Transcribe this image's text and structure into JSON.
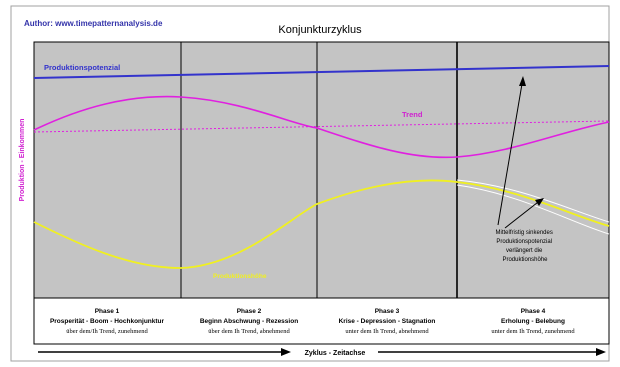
{
  "author": "Author: www.timepatternanalysis.de",
  "title": "Konjunkturzyklus",
  "y_label": "Produktion - Einkommen",
  "x_label": "Zyklus - Zeitachse",
  "curve_labels": {
    "potential": "Produktionspotenzial",
    "trend": "Trend",
    "production": "Produktionshöhe"
  },
  "annotation": [
    "Mittelfristig sinkendes",
    "Produktionspotenzial",
    "verlängert die",
    "Produktionshöhe"
  ],
  "phases": [
    {
      "name": "Phase 1",
      "title": "Prosperität - Boom - Hochkonjunktur",
      "desc": "über dem/Ih Trend, zunehmend"
    },
    {
      "name": "Phase 2",
      "title": "Beginn Abschwung - Rezession",
      "desc": "über dem Ih Trend, abnehmend"
    },
    {
      "name": "Phase 3",
      "title": "Krise - Depression - Stagnation",
      "desc": "unter dem Ih Trend, abnehmend"
    },
    {
      "name": "Phase 4",
      "title": "Erholung - Belebung",
      "desc": "unter dem Ih Trend, zunehmend"
    }
  ],
  "colors": {
    "panel": "#c4c4c4",
    "potential": "#3333cc",
    "trend": "#e020e0",
    "production": "#f0f020",
    "label_magenta": "#d020d0",
    "author": "#3333aa"
  }
}
